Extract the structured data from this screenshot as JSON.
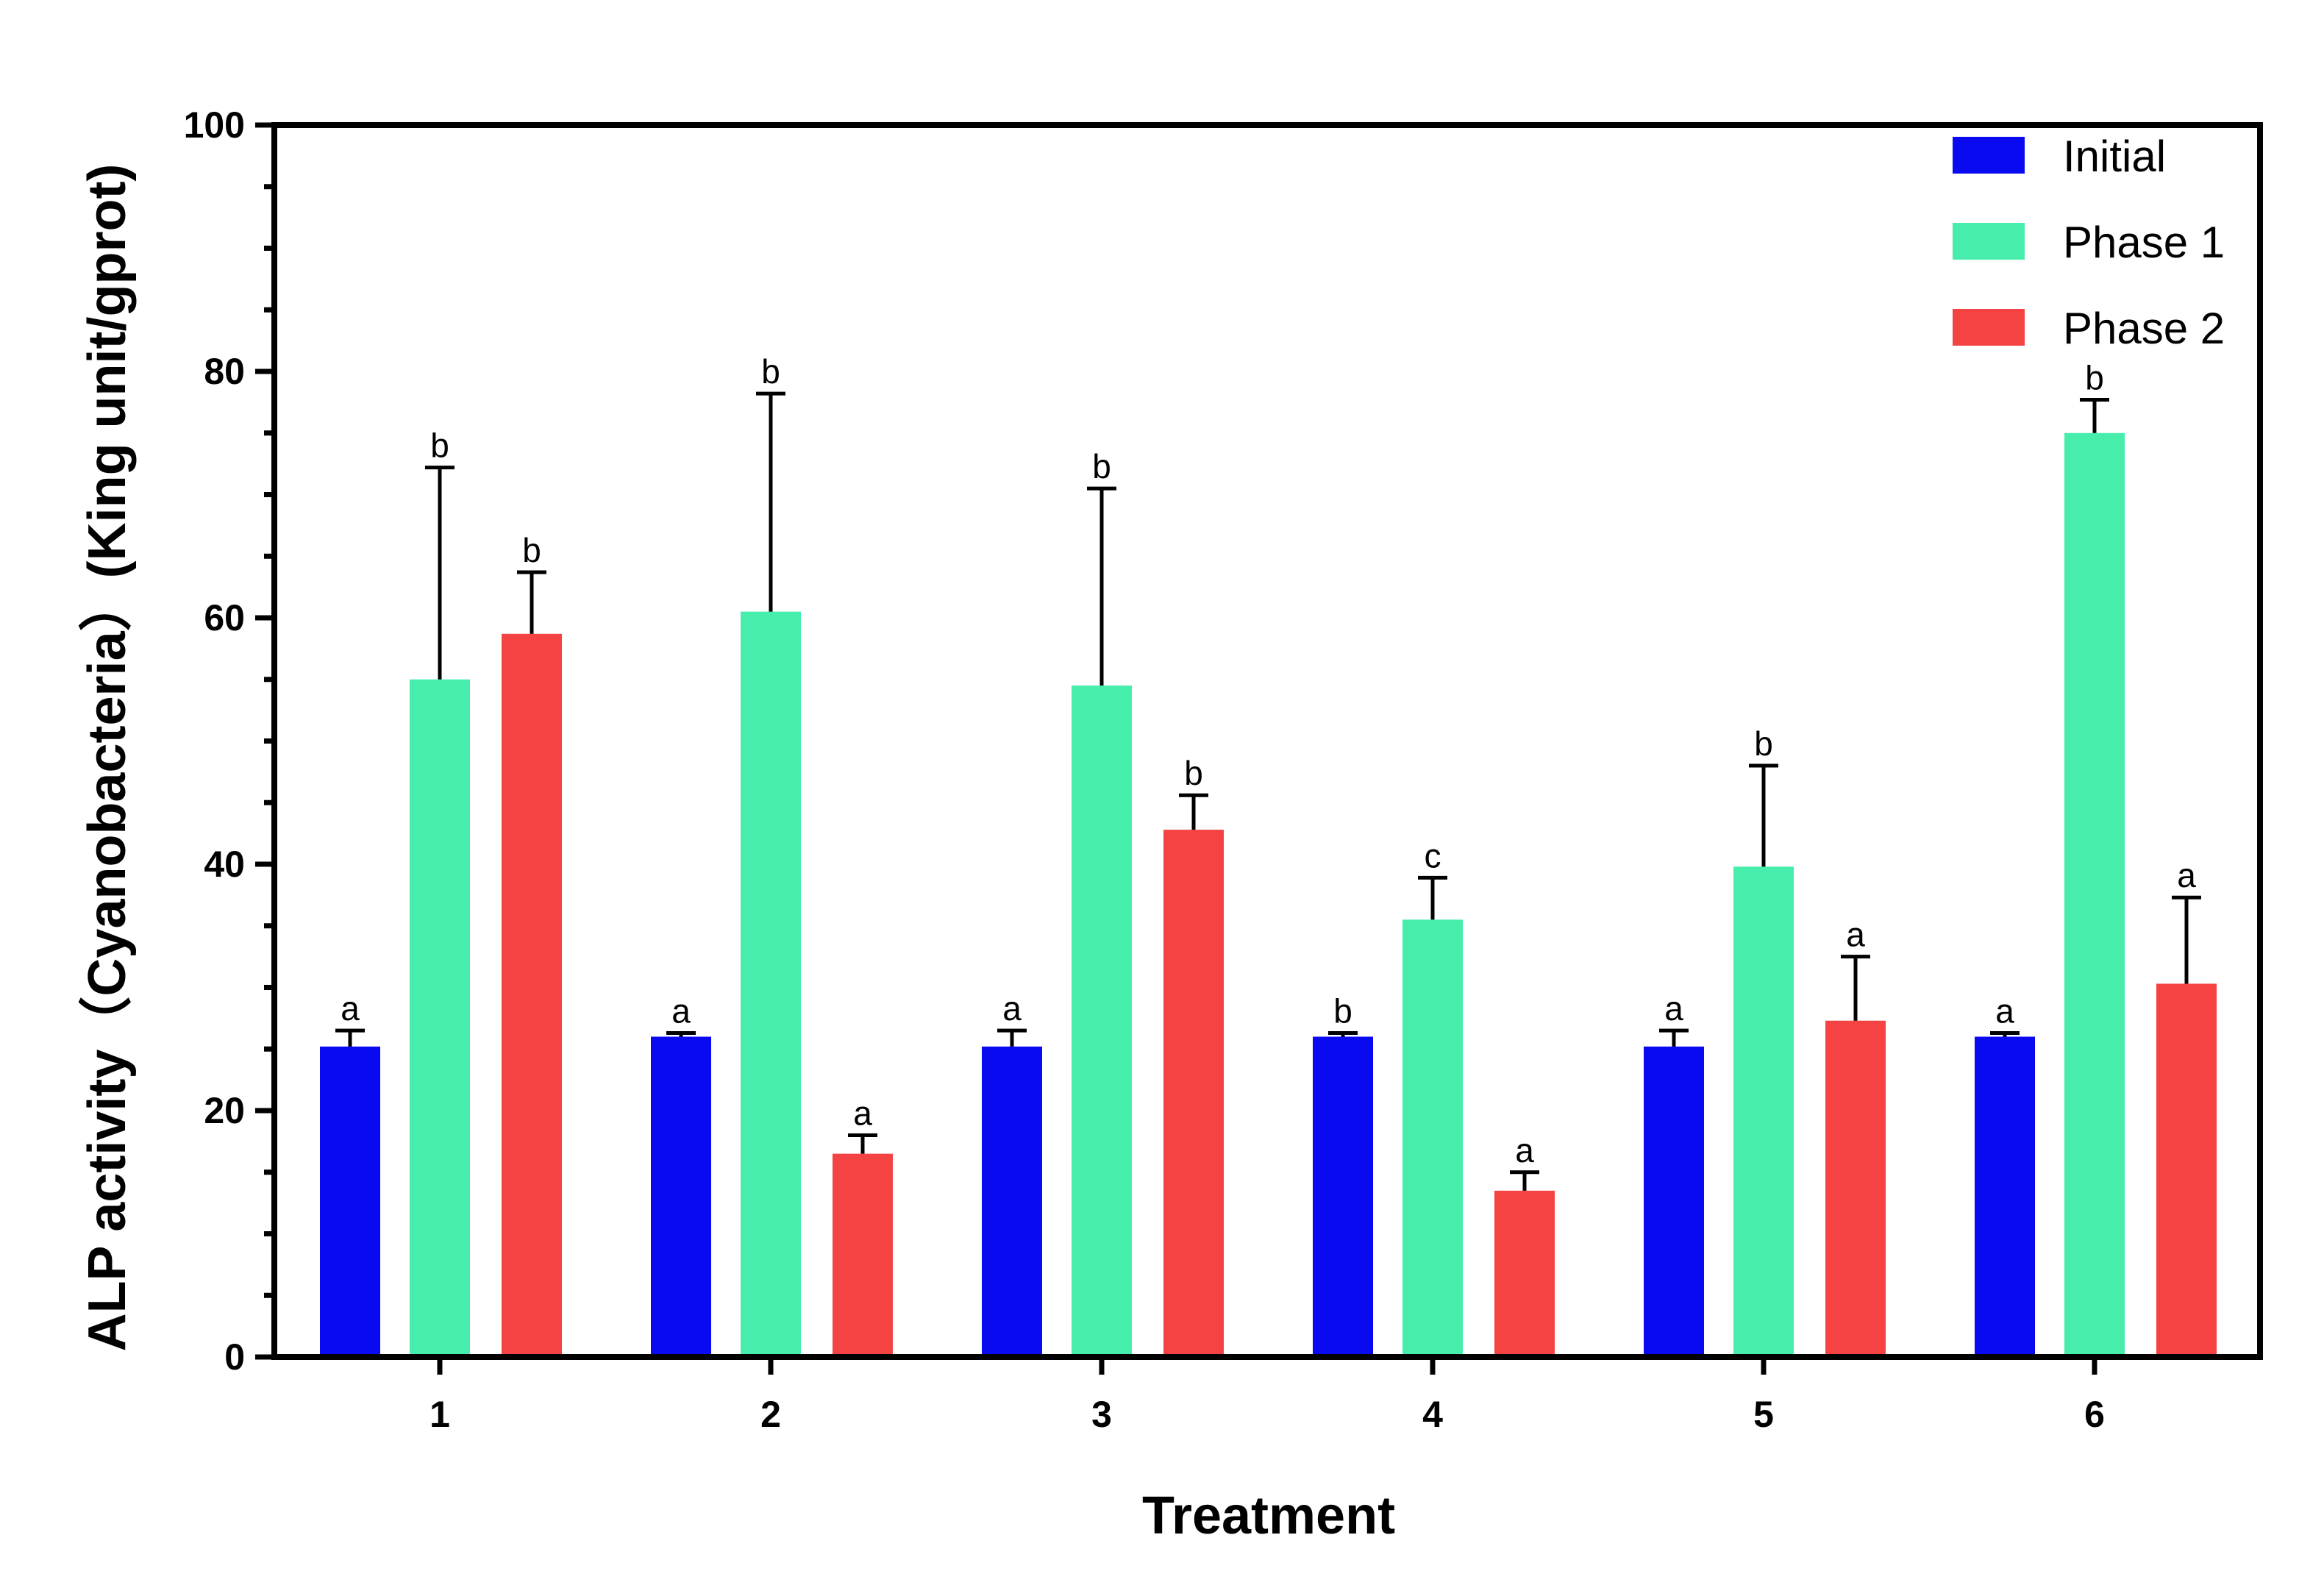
{
  "chart_data": {
    "type": "bar",
    "xlabel": "Treatment",
    "ylabel": "ALP activity（Cyanobacteria）(King unit/gprot)",
    "ylim": [
      0,
      100
    ],
    "yticks": [
      "0",
      "20",
      "40",
      "60",
      "80",
      "100"
    ],
    "categories": [
      "1",
      "2",
      "3",
      "4",
      "5",
      "6"
    ],
    "legend_position": "top-right",
    "series": [
      {
        "name": "Initial",
        "color": "#0a0af0",
        "values": [
          25.2,
          26.0,
          25.2,
          26.0,
          25.2,
          26.0
        ],
        "errors": [
          1.3,
          0.3,
          1.3,
          0.3,
          1.3,
          0.3
        ],
        "letters": [
          "a",
          "a",
          "a",
          "b",
          "a",
          "a"
        ]
      },
      {
        "name": "Phase 1",
        "color": "#46edab",
        "values": [
          55.0,
          60.5,
          54.5,
          35.5,
          39.8,
          75.0
        ],
        "errors": [
          17.2,
          17.7,
          16.0,
          3.4,
          8.2,
          2.7
        ],
        "letters": [
          "b",
          "b",
          "b",
          "c",
          "b",
          "b"
        ]
      },
      {
        "name": "Phase 2",
        "color": "#f54343",
        "values": [
          58.7,
          16.5,
          42.8,
          13.5,
          27.3,
          30.3
        ],
        "errors": [
          5.0,
          1.5,
          2.8,
          1.5,
          5.2,
          7.0
        ],
        "letters": [
          "b",
          "a",
          "b",
          "a",
          "a",
          "a"
        ]
      }
    ]
  }
}
